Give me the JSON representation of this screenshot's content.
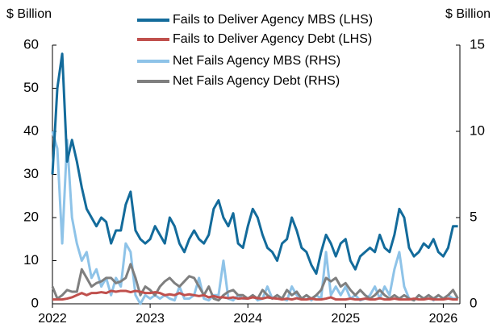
{
  "chart_data": {
    "type": "line",
    "y_label": "$ Billion",
    "y2_label": "$ Billion",
    "x": [
      2022,
      2022.05,
      2022.1,
      2022.15,
      2022.2,
      2022.25,
      2022.3,
      2022.35,
      2022.4,
      2022.45,
      2022.5,
      2022.55,
      2022.6,
      2022.65,
      2022.7,
      2022.75,
      2022.8,
      2022.85,
      2022.9,
      2022.95,
      2023,
      2023.05,
      2023.1,
      2023.15,
      2023.2,
      2023.25,
      2023.3,
      2023.35,
      2023.4,
      2023.45,
      2023.5,
      2023.55,
      2023.6,
      2023.65,
      2023.7,
      2023.75,
      2023.8,
      2023.85,
      2023.9,
      2023.95,
      2024,
      2024.05,
      2024.1,
      2024.15,
      2024.2,
      2024.25,
      2024.3,
      2024.35,
      2024.4,
      2024.45,
      2024.5,
      2024.55,
      2024.6,
      2024.65,
      2024.7,
      2024.75,
      2024.8,
      2024.85,
      2024.9,
      2024.95,
      2025,
      2025.05,
      2025.1,
      2025.15,
      2025.2,
      2025.25,
      2025.3,
      2025.35,
      2025.4,
      2025.45,
      2025.5,
      2025.55,
      2025.6,
      2025.65,
      2025.7,
      2025.75,
      2025.8,
      2025.85,
      2025.9,
      2025.95,
      2026,
      2026.05,
      2026.1,
      2026.15
    ],
    "series": [
      {
        "name": "Fails to Deliver Agency MBS (LHS)",
        "color": "#136b9b",
        "axis": "y",
        "values": [
          30,
          50,
          58,
          33,
          38,
          33,
          27,
          22,
          20,
          18,
          20,
          19,
          14,
          17,
          17,
          23,
          26,
          17,
          15,
          14,
          15,
          18,
          16,
          14,
          20,
          18,
          14,
          12,
          15,
          17,
          15,
          14,
          16,
          22,
          24,
          20,
          18,
          21,
          14,
          13,
          18,
          22,
          20,
          16,
          13,
          12,
          10,
          14,
          15,
          20,
          17,
          13,
          12,
          9,
          7,
          12,
          16,
          14,
          11,
          14,
          15,
          10,
          8,
          11,
          12,
          13,
          12,
          16,
          13,
          12,
          16,
          22,
          20,
          13,
          11,
          12,
          14,
          13,
          15,
          12,
          11,
          13,
          18,
          18
        ]
      },
      {
        "name": "Fails to Deliver Agency Debt (LHS)",
        "color": "#c0504d",
        "axis": "y",
        "values": [
          1,
          1,
          1,
          1.2,
          1.5,
          2,
          2.5,
          2,
          2.5,
          2.5,
          2.7,
          2.5,
          3,
          2.8,
          3,
          3,
          2.7,
          3,
          2.8,
          2.5,
          2.5,
          2.7,
          2.5,
          2,
          2.2,
          2,
          2.5,
          2,
          2.2,
          2,
          1.8,
          2,
          1.5,
          1.8,
          1.5,
          1.5,
          1.3,
          1.5,
          1.2,
          1.3,
          1.2,
          1.5,
          1.3,
          1.2,
          1.5,
          1.3,
          1.2,
          1,
          1.2,
          1,
          1.3,
          1,
          1,
          1.2,
          1,
          1,
          1.2,
          1.5,
          1,
          1,
          1,
          1.2,
          1,
          1,
          1.2,
          1,
          1,
          1.3,
          1,
          1,
          1.2,
          1,
          1,
          1,
          1.2,
          1,
          1,
          1.2,
          1,
          1,
          1,
          1.2,
          1,
          1
        ]
      },
      {
        "name": "Net Fails Agency MBS (RHS)",
        "color": "#8ec3e8",
        "axis": "y2",
        "values": [
          10,
          9,
          3.5,
          9.5,
          5,
          3.5,
          2.5,
          3,
          1.5,
          2,
          1,
          1.5,
          0.5,
          1.5,
          1,
          3.5,
          3,
          0.5,
          0,
          0.5,
          0.3,
          0.5,
          0.3,
          0.5,
          0.3,
          0.2,
          1,
          0.3,
          0.3,
          0.5,
          1.5,
          0.3,
          0.2,
          0.5,
          0.5,
          2.5,
          0.3,
          0.2,
          0.5,
          0.3,
          0.3,
          0.5,
          0.2,
          0.3,
          1,
          0.3,
          0.5,
          0.3,
          0.2,
          1,
          0.5,
          0.3,
          0.5,
          0.2,
          0.5,
          0.3,
          3,
          0.5,
          1,
          0.5,
          1,
          0.3,
          0.5,
          0.2,
          0.3,
          0.5,
          1,
          0.3,
          1,
          0.5,
          2,
          3,
          1,
          0.3,
          0.2,
          0.5,
          0.3,
          0.5,
          0.2,
          0.5,
          0.3,
          0.5,
          0.3,
          0.3
        ]
      },
      {
        "name": "Net Fails Agency Debt (RHS)",
        "color": "#7f7f7f",
        "axis": "y2",
        "values": [
          1,
          0.3,
          0.5,
          0.8,
          0.7,
          0.7,
          2,
          1.5,
          1,
          1.2,
          1.3,
          1.5,
          1.5,
          1.2,
          1.3,
          1.5,
          2.3,
          1.5,
          0.5,
          1,
          0.8,
          0.5,
          1,
          1.3,
          1.5,
          1.2,
          1,
          1.3,
          1.6,
          1.5,
          1,
          0.5,
          1,
          0.3,
          0.2,
          0.5,
          0.7,
          0.8,
          0.5,
          0.5,
          0.3,
          0.5,
          0.3,
          0.8,
          0.5,
          0.3,
          0.5,
          0.3,
          0.8,
          0.5,
          0.7,
          0.3,
          0.5,
          0.3,
          0.5,
          0.8,
          1.5,
          1.3,
          1.5,
          1,
          1.2,
          0.8,
          0.5,
          0.8,
          0.5,
          0.3,
          0.5,
          0.8,
          0.5,
          0.3,
          0.5,
          0.3,
          0.5,
          0.3,
          0.2,
          0.5,
          0.3,
          0.5,
          0.3,
          0.5,
          0.3,
          0.5,
          0.8,
          0.3
        ]
      }
    ],
    "xlim": [
      2022,
      2026.17
    ],
    "xticks": [
      2022,
      2023,
      2024,
      2025,
      2026
    ],
    "ylim": [
      0,
      60
    ],
    "yticks": [
      0,
      10,
      20,
      30,
      40,
      50,
      60
    ],
    "y2lim": [
      0,
      15
    ],
    "y2ticks": [
      0,
      5,
      10,
      15
    ],
    "legend": "top"
  }
}
